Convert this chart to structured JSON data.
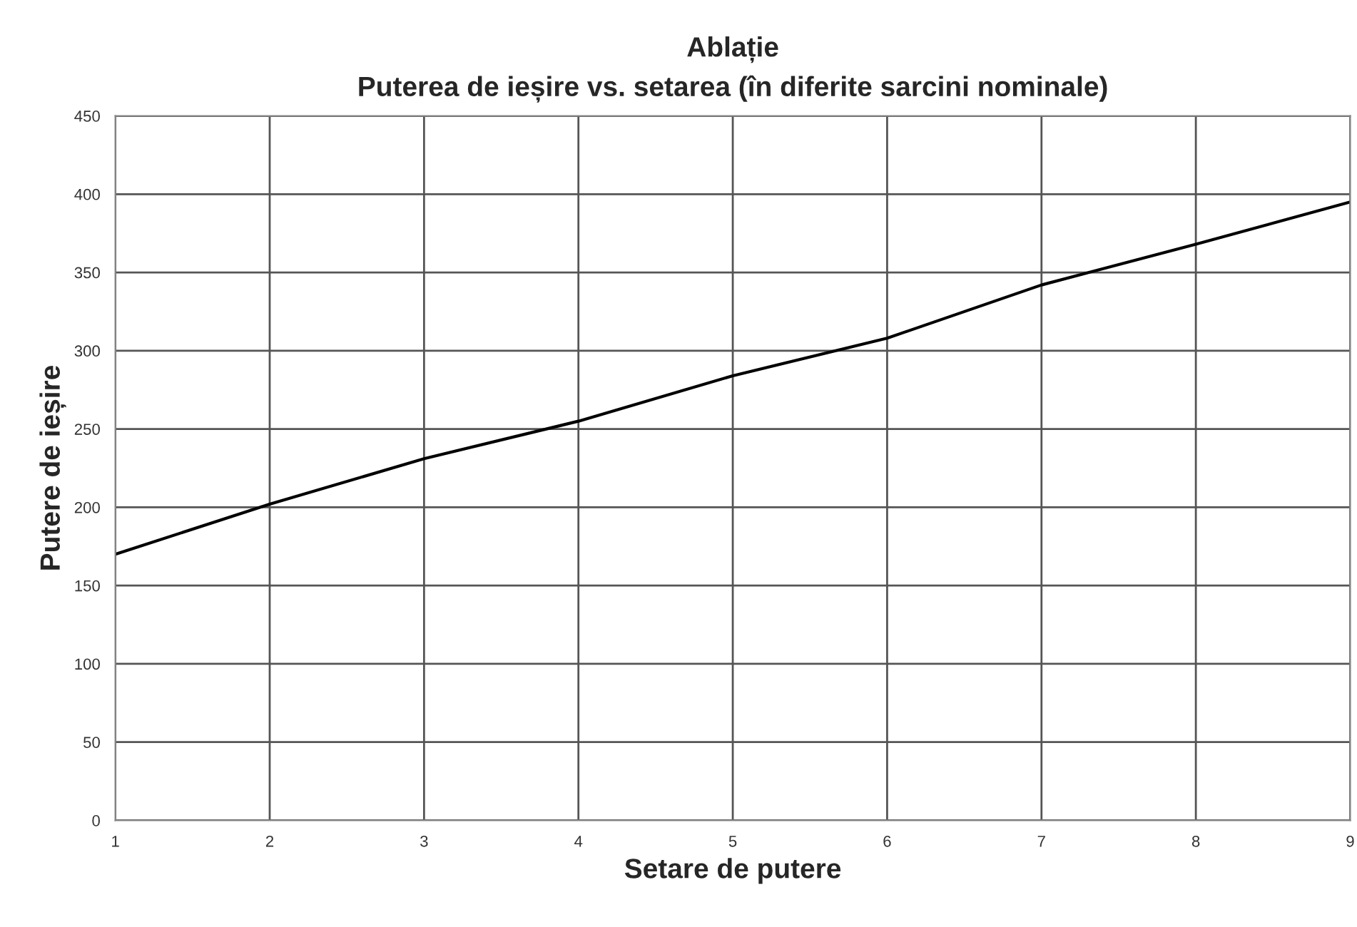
{
  "chart_data": {
    "type": "line",
    "title": "Ablație\nPuterea de ieșire vs. setarea (în diferite sarcini nominale)",
    "xlabel": "Setare de putere",
    "ylabel": "Putere de ieșire",
    "x": [
      1,
      2,
      3,
      4,
      5,
      6,
      7,
      8,
      9
    ],
    "series": [
      {
        "color": "#000000",
        "values": [
          170,
          202,
          231,
          255,
          284,
          308,
          342,
          368,
          395
        ]
      }
    ],
    "xlim": [
      1,
      9
    ],
    "xticks": [
      1,
      2,
      3,
      4,
      5,
      6,
      7,
      8,
      9
    ],
    "ylim": [
      0,
      450
    ],
    "yticks": [
      0,
      50,
      100,
      150,
      200,
      250,
      300,
      350,
      400,
      450
    ],
    "grid": true,
    "marker": "none",
    "line_style": "solid"
  }
}
